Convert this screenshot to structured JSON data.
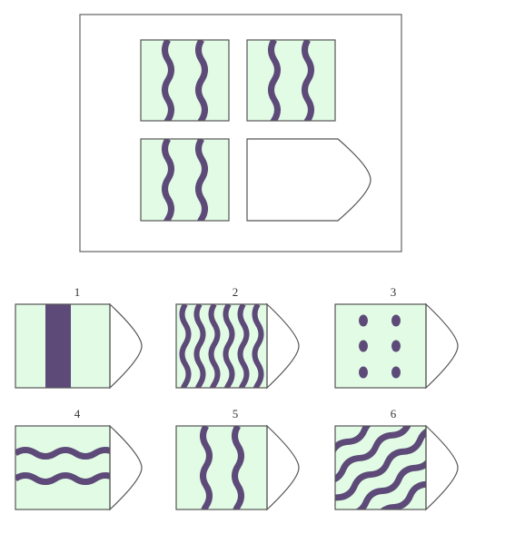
{
  "colors": {
    "tile_fill": "#e1fbe4",
    "wave": "#5d4a79",
    "stroke": "#555555",
    "frame": "#6e6e6e",
    "background": "#ffffff"
  },
  "question": {
    "cells": [
      {
        "pattern": "two-vertical-waves"
      },
      {
        "pattern": "two-vertical-waves"
      },
      {
        "pattern": "two-vertical-waves"
      },
      {
        "pattern": "missing"
      }
    ]
  },
  "options": [
    {
      "number": "1",
      "pattern": "single-solid-vertical-bar"
    },
    {
      "number": "2",
      "pattern": "six-vertical-waves"
    },
    {
      "number": "3",
      "pattern": "six-dots"
    },
    {
      "number": "4",
      "pattern": "two-horizontal-waves"
    },
    {
      "number": "5",
      "pattern": "two-vertical-waves"
    },
    {
      "number": "6",
      "pattern": "diagonal-waves"
    }
  ]
}
